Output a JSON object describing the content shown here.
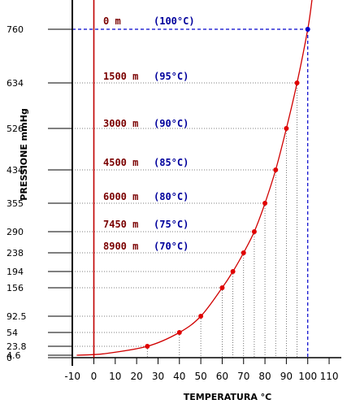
{
  "chart_data": {
    "type": "line",
    "xlabel": "TEMPERATURA °C",
    "ylabel": "PRESSIONE mmHg",
    "xlim": [
      -10,
      110
    ],
    "x_ticks": [
      -10,
      0,
      10,
      20,
      30,
      40,
      50,
      60,
      70,
      80,
      90,
      100,
      110
    ],
    "y_ticks": [
      {
        "value": 0,
        "label": "0"
      },
      {
        "value": 4.6,
        "label": "4.6"
      },
      {
        "value": 23.8,
        "label": "23.8"
      },
      {
        "value": 54,
        "label": "54"
      },
      {
        "value": 92.5,
        "label": "92.5"
      },
      {
        "value": 156,
        "label": "156"
      },
      {
        "value": 194,
        "label": "194"
      },
      {
        "value": 238,
        "label": "238"
      },
      {
        "value": 290,
        "label": "290"
      },
      {
        "value": 355,
        "label": "355"
      },
      {
        "value": 434,
        "label": "434"
      },
      {
        "value": 526,
        "label": "526"
      },
      {
        "value": 634,
        "label": "634"
      },
      {
        "value": 760,
        "label": "760"
      }
    ],
    "points": [
      {
        "x": 25,
        "y": 23.8
      },
      {
        "x": 40,
        "y": 54
      },
      {
        "x": 50,
        "y": 92.5
      },
      {
        "x": 60,
        "y": 156
      },
      {
        "x": 65,
        "y": 194
      },
      {
        "x": 70,
        "y": 238
      },
      {
        "x": 75,
        "y": 290
      },
      {
        "x": 80,
        "y": 355
      },
      {
        "x": 85,
        "y": 434
      },
      {
        "x": 90,
        "y": 526
      },
      {
        "x": 95,
        "y": 634
      },
      {
        "x": 100,
        "y": 760
      }
    ],
    "annotations": [
      {
        "altitude": "0 m",
        "temp": "(100°C)"
      },
      {
        "altitude": "1500 m",
        "temp": "(95°C)"
      },
      {
        "altitude": "3000 m",
        "temp": "(90°C)"
      },
      {
        "altitude": "4500 m",
        "temp": "(85°C)"
      },
      {
        "altitude": "6000 m",
        "temp": "(80°C)"
      },
      {
        "altitude": "7450 m",
        "temp": "(75°C)"
      },
      {
        "altitude": "8900 m",
        "temp": "(70°C)"
      }
    ],
    "colors": {
      "curve": "#d00000",
      "points": "#e00000",
      "highlight_point": "#0000cc",
      "reference_line": "#0000cc",
      "zero_line": "#c00000",
      "altitude_text": "#7a0000",
      "temperature_text": "#00009c"
    }
  }
}
